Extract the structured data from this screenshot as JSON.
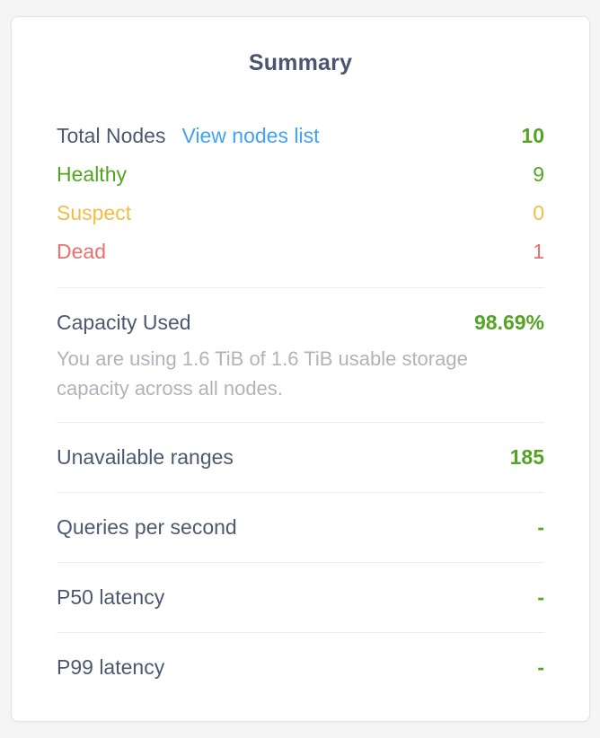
{
  "panel": {
    "title": "Summary"
  },
  "colors": {
    "title": "#4A566F",
    "label": "#4C5970",
    "green": "#54A423",
    "yellow": "#F0BE44",
    "red": "#E8716D",
    "blue": "#40A3F7",
    "note": "#AFB4BB",
    "divider": "#ECECEC"
  },
  "nodes": {
    "total": {
      "label": "Total Nodes",
      "link": "View nodes list",
      "value": "10"
    },
    "statuses": [
      {
        "label": "Healthy",
        "value": "9"
      },
      {
        "label": "Suspect",
        "value": "0"
      },
      {
        "label": "Dead",
        "value": "1"
      }
    ]
  },
  "capacity": {
    "label": "Capacity Used",
    "value": "98.69%",
    "note": "You are using 1.6 TiB of 1.6 TiB usable storage capacity across all nodes."
  },
  "metrics": [
    {
      "label": "Unavailable ranges",
      "value": "185"
    },
    {
      "label": "Queries per second",
      "value": "-"
    },
    {
      "label": "P50 latency",
      "value": "-"
    },
    {
      "label": "P99 latency",
      "value": "-"
    }
  ]
}
